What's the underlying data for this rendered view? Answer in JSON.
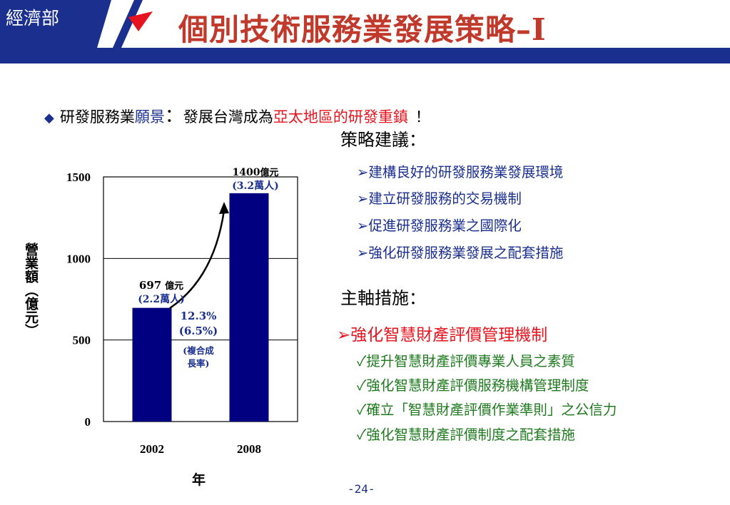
{
  "header": {
    "ministry": "經濟部",
    "title": "個別技術服務業發展策略–Ⅰ",
    "colors": {
      "brand": "#1a2f8e",
      "title": "#c0392b"
    }
  },
  "vision": {
    "prefix": "研發服務業",
    "keyword": "願景",
    "colon": "：",
    "middle": "發展台灣成為",
    "highlight": "亞太地區的研發重鎮",
    "end": "！"
  },
  "strategy": {
    "heading": "策略建議：",
    "items": [
      "➢建構良好的研發服務業發展環境",
      "➢建立研發服務的交易機制",
      "➢促進研發服務業之國際化",
      "➢強化研發服務業發展之配套措施"
    ]
  },
  "main_measures": {
    "heading": "主軸措施：",
    "lead": "➢強化智慧財產評價管理機制",
    "items": [
      "✓提升智慧財產評價專業人員之素質",
      "✓強化智慧財產評價服務機構管理制度",
      "✓確立「智慧財產評價作業準則」之公信力",
      "✓強化智慧財產評價制度之配套措施"
    ]
  },
  "chart_data": {
    "type": "bar",
    "categories": [
      "2002",
      "2008"
    ],
    "values": [
      697,
      1400
    ],
    "xlabel": "年",
    "ylabel": "營業額（億元）",
    "ylim": [
      0,
      1500
    ],
    "yticks": [
      "0",
      "500",
      "1000",
      "1500"
    ],
    "grid": true,
    "bar_color": "#000080",
    "data_labels": [
      {
        "line1_num": "697",
        "line1_unit": "億元",
        "line2": "(2.2萬人)"
      },
      {
        "line1_num": "1400",
        "line1_unit": "億元",
        "line2": "(3.2萬人)"
      }
    ],
    "growth_annotation": {
      "rate": "12.3%",
      "rate2": "(6.5%)",
      "note1": "(複合成",
      "note2": "長率)"
    }
  },
  "footer": {
    "page": "-24-"
  }
}
